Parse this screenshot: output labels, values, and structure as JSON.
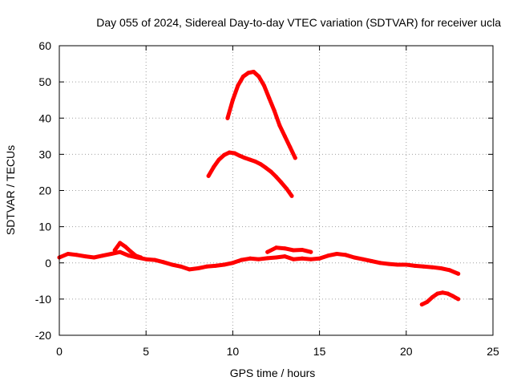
{
  "chart_data": {
    "type": "line",
    "title": "Day 055 of 2024, Sidereal Day-to-day VTEC variation (SDTVAR) for receiver ucla",
    "xlabel": "GPS time / hours",
    "ylabel": "SDTVAR / TECUs",
    "xlim": [
      0,
      25
    ],
    "ylim": [
      -20,
      60
    ],
    "xticks": [
      0,
      5,
      10,
      15,
      20,
      25
    ],
    "yticks": [
      -20,
      -10,
      0,
      10,
      20,
      30,
      40,
      50,
      60
    ],
    "xtick_labels": [
      "0",
      "5",
      "10",
      "15",
      "20",
      "25"
    ],
    "ytick_labels": [
      "-20",
      "-10",
      "0",
      "10",
      "20",
      "30",
      "40",
      "50",
      "60"
    ],
    "grid": true,
    "color": "#ff0000",
    "series": [
      {
        "name": "arc-main-low",
        "x": [
          0,
          0.5,
          1,
          1.5,
          2,
          2.5,
          3,
          3.5,
          4,
          4.5,
          5,
          5.5,
          6,
          6.5,
          7,
          7.5,
          8,
          8.5,
          9,
          9.5,
          10,
          10.5,
          11,
          11.5,
          12,
          12.5,
          13,
          13.5,
          14,
          14.5,
          15,
          15.5,
          16,
          16.5,
          17,
          17.5,
          18,
          18.5,
          19,
          19.5,
          20,
          20.5,
          21,
          21.5,
          22,
          22.5,
          23
        ],
        "y": [
          1.5,
          2.5,
          2.2,
          1.8,
          1.5,
          2.0,
          2.5,
          3.0,
          2.0,
          1.5,
          1.0,
          0.8,
          0.2,
          -0.5,
          -1.0,
          -1.8,
          -1.5,
          -1.0,
          -0.8,
          -0.5,
          0.0,
          0.8,
          1.2,
          1.0,
          1.3,
          1.5,
          1.8,
          1.0,
          1.2,
          1.0,
          1.2,
          2.0,
          2.5,
          2.2,
          1.5,
          1.0,
          0.5,
          0.0,
          -0.3,
          -0.5,
          -0.5,
          -0.8,
          -1.0,
          -1.2,
          -1.5,
          -2.0,
          -3.0
        ]
      },
      {
        "name": "arc-spike",
        "x": [
          3.2,
          3.5,
          3.8,
          4.1,
          4.4,
          4.7
        ],
        "y": [
          3.5,
          5.5,
          4.5,
          3.2,
          2.0,
          1.5
        ]
      },
      {
        "name": "arc-secondary-low",
        "x": [
          12.0,
          12.5,
          13.0,
          13.5,
          14.0,
          14.5
        ],
        "y": [
          3.0,
          4.2,
          4.0,
          3.5,
          3.6,
          3.0
        ]
      },
      {
        "name": "arc-high-peak",
        "x": [
          9.7,
          10.0,
          10.3,
          10.6,
          10.9,
          11.2,
          11.5,
          11.8,
          12.1,
          12.4,
          12.7,
          13.0,
          13.3,
          13.6
        ],
        "y": [
          40,
          45,
          49,
          51.5,
          52.5,
          52.8,
          51.5,
          49,
          45.5,
          42,
          38,
          35,
          32,
          29
        ]
      },
      {
        "name": "arc-mid-peak",
        "x": [
          8.6,
          8.9,
          9.2,
          9.5,
          9.8,
          10.1,
          10.4,
          10.7,
          11.0,
          11.3,
          11.6,
          11.9,
          12.2,
          12.5,
          12.8,
          13.1,
          13.4
        ],
        "y": [
          24,
          26.5,
          28.5,
          29.8,
          30.5,
          30.3,
          29.6,
          29.0,
          28.5,
          28.0,
          27.3,
          26.3,
          25.2,
          23.8,
          22.2,
          20.5,
          18.5
        ]
      },
      {
        "name": "arc-negative",
        "x": [
          20.9,
          21.2,
          21.5,
          21.8,
          22.1,
          22.4,
          22.7,
          23.0
        ],
        "y": [
          -11.5,
          -10.8,
          -9.5,
          -8.5,
          -8.2,
          -8.5,
          -9.2,
          -10.0
        ]
      }
    ]
  }
}
